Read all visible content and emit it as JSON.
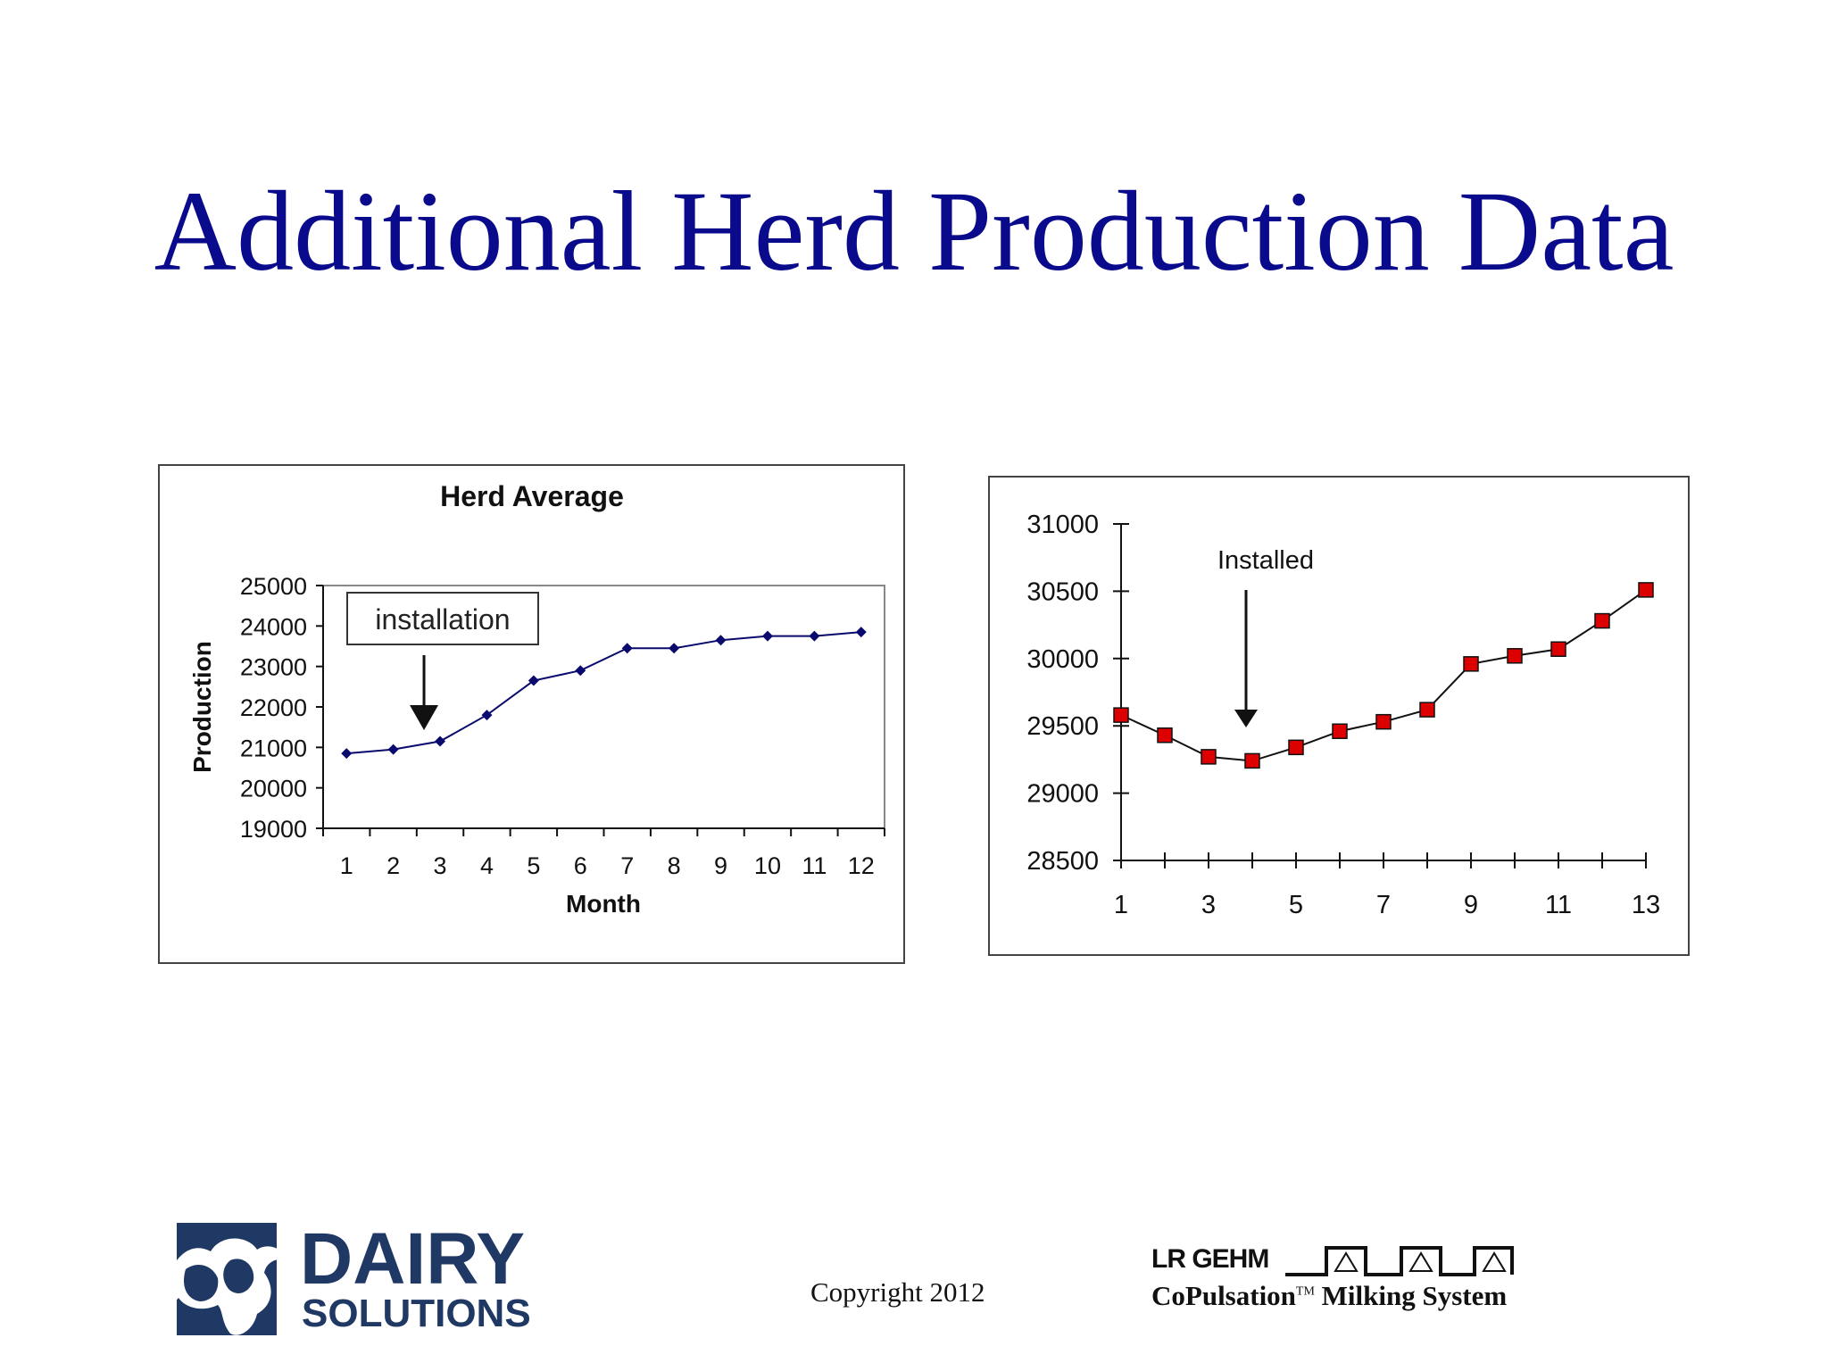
{
  "slide": {
    "title": "Additional Herd Production Data",
    "copyright": "Copyright 2012"
  },
  "logos": {
    "left": {
      "line1": "DAIRY",
      "line2": "SOLUTIONS",
      "color": "#1f3864"
    },
    "right": {
      "line1": "LR GEHM",
      "line2_main": "CoPulsation",
      "line2_tm": "TM",
      "line2_rest": " Milking System"
    }
  },
  "chart_data": [
    {
      "type": "line",
      "title": "Herd Average",
      "xlabel": "Month",
      "ylabel": "Production",
      "x": [
        1,
        2,
        3,
        4,
        5,
        6,
        7,
        8,
        9,
        10,
        11,
        12
      ],
      "series": [
        {
          "values": [
            20850,
            20950,
            21150,
            21800,
            22650,
            22900,
            23450,
            23450,
            23650,
            23750,
            23750,
            23850
          ],
          "color": "#0a0a6e",
          "marker": "diamond"
        }
      ],
      "ylim": [
        19000,
        25000
      ],
      "yticks": [
        19000,
        20000,
        21000,
        22000,
        23000,
        24000,
        25000
      ],
      "xticks": [
        1,
        2,
        3,
        4,
        5,
        6,
        7,
        8,
        9,
        10,
        11,
        12
      ],
      "annotation": {
        "text": "installation",
        "x": 3
      }
    },
    {
      "type": "line",
      "title": "",
      "x": [
        1,
        2,
        3,
        4,
        5,
        6,
        7,
        8,
        9,
        10,
        11,
        12,
        13
      ],
      "series": [
        {
          "values": [
            29580,
            29430,
            29270,
            29240,
            29340,
            29460,
            29530,
            29620,
            29960,
            30020,
            30070,
            30280,
            30510
          ],
          "color": "#dd0000",
          "marker": "square"
        }
      ],
      "ylim": [
        28500,
        31000
      ],
      "yticks": [
        28500,
        29000,
        29500,
        30000,
        30500,
        31000
      ],
      "xticks": [
        1,
        3,
        5,
        7,
        9,
        11,
        13
      ],
      "annotation": {
        "text": "Installed",
        "x": 4
      }
    }
  ]
}
